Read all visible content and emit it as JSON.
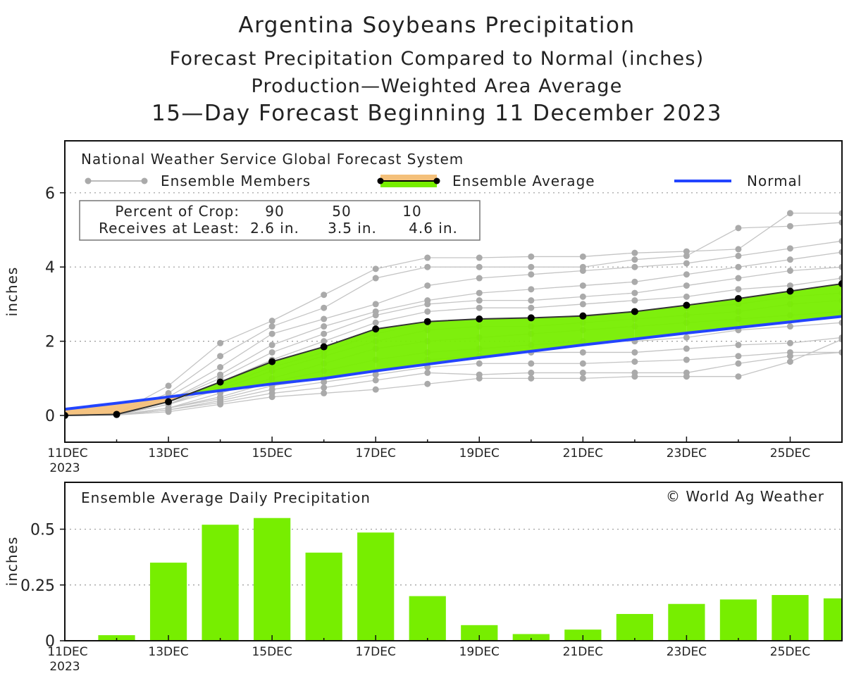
{
  "titles": [
    "Argentina Soybeans Precipitation",
    "Forecast Precipitation Compared to Normal (inches)",
    "Production—Weighted Area Average",
    "15—Day Forecast Beginning 11 December 2023"
  ],
  "colors": {
    "ensemble_member": "#aaaaaa",
    "above_normal_fill": "#77ee00",
    "below_normal_fill": "#f4c07a",
    "normal_line": "#2244ff",
    "bar": "#77ee00",
    "average_line": "#000000"
  },
  "chart_data": [
    {
      "type": "line",
      "subtitle": "National Weather Service Global Forecast System",
      "ylabel": "inches",
      "ylim": [
        -0.72,
        7.4
      ],
      "yticks": [
        0,
        2,
        4,
        6
      ],
      "grid": "horizontal dotted",
      "x": [
        "11DEC",
        "12DEC",
        "13DEC",
        "14DEC",
        "15DEC",
        "16DEC",
        "17DEC",
        "18DEC",
        "19DEC",
        "20DEC",
        "21DEC",
        "22DEC",
        "23DEC",
        "24DEC",
        "25DEC",
        "26DEC"
      ],
      "xtick_labels": [
        "11DEC",
        "13DEC",
        "15DEC",
        "17DEC",
        "19DEC",
        "21DEC",
        "23DEC",
        "25DEC"
      ],
      "xtick_year": "2023",
      "legend": {
        "members": "Ensemble Members",
        "average": "Ensemble Average",
        "normal": "Normal",
        "placement": "top"
      },
      "crop_table": {
        "row1_label": "Percent of Crop:",
        "row1": [
          "90",
          "50",
          "10"
        ],
        "row2_label": "Receives at Least:",
        "row2": [
          "2.6 in.",
          "3.5 in.",
          "4.6 in."
        ]
      },
      "ensemble_average": [
        0,
        0.03,
        0.37,
        0.9,
        1.45,
        1.85,
        2.33,
        2.53,
        2.6,
        2.63,
        2.68,
        2.8,
        2.97,
        3.15,
        3.35,
        3.55
      ],
      "normal": [
        0.17,
        0.33,
        0.5,
        0.67,
        0.85,
        1.0,
        1.2,
        1.38,
        1.56,
        1.73,
        1.9,
        2.06,
        2.22,
        2.37,
        2.52,
        2.67
      ],
      "ensemble_members": [
        [
          0,
          0.05,
          0.8,
          1.95,
          2.55,
          3.25,
          3.95,
          4.25,
          4.25,
          4.28,
          4.28,
          4.38,
          4.42,
          4.48,
          5.45,
          5.45
        ],
        [
          0,
          0.05,
          0.6,
          1.6,
          2.4,
          2.9,
          3.7,
          4.0,
          4.0,
          4.0,
          4.0,
          4.2,
          4.3,
          5.05,
          5.1,
          5.2
        ],
        [
          0,
          0.02,
          0.5,
          1.3,
          2.2,
          2.6,
          3.0,
          3.5,
          3.7,
          3.8,
          3.9,
          4.0,
          4.1,
          4.3,
          4.5,
          4.7
        ],
        [
          0,
          0.03,
          0.4,
          1.1,
          1.9,
          2.4,
          2.8,
          3.1,
          3.3,
          3.4,
          3.5,
          3.6,
          3.8,
          4.0,
          4.2,
          4.4
        ],
        [
          0,
          0.03,
          0.4,
          1.0,
          1.7,
          2.2,
          2.7,
          3.0,
          3.1,
          3.1,
          3.2,
          3.3,
          3.5,
          3.7,
          3.9,
          4.0
        ],
        [
          0,
          0.02,
          0.3,
          0.9,
          1.5,
          2.0,
          2.5,
          2.8,
          2.9,
          2.9,
          3.0,
          3.1,
          3.2,
          3.4,
          3.5,
          3.7
        ],
        [
          0,
          0.02,
          0.3,
          0.8,
          1.3,
          1.7,
          2.2,
          2.5,
          2.6,
          2.6,
          2.7,
          2.8,
          2.9,
          3.0,
          3.2,
          3.3
        ],
        [
          0,
          0.01,
          0.3,
          0.7,
          1.2,
          1.6,
          2.0,
          2.3,
          2.4,
          2.4,
          2.5,
          2.6,
          2.7,
          2.8,
          3.0,
          3.1
        ],
        [
          0,
          0.01,
          0.2,
          0.6,
          1.0,
          1.4,
          1.8,
          2.0,
          2.1,
          2.2,
          2.3,
          2.4,
          2.5,
          2.6,
          2.7,
          2.8
        ],
        [
          0,
          0.01,
          0.2,
          0.5,
          0.9,
          1.2,
          1.5,
          1.7,
          1.8,
          1.9,
          2.0,
          2.0,
          2.1,
          2.3,
          2.4,
          2.5
        ],
        [
          0,
          0.01,
          0.2,
          0.45,
          0.8,
          1.0,
          1.2,
          1.5,
          1.6,
          1.7,
          1.7,
          1.7,
          1.8,
          1.9,
          1.95,
          2.1
        ],
        [
          0,
          0.01,
          0.15,
          0.4,
          0.7,
          0.9,
          1.1,
          1.3,
          1.4,
          1.4,
          1.4,
          1.45,
          1.5,
          1.6,
          1.7,
          1.7
        ],
        [
          0,
          0.01,
          0.15,
          0.35,
          0.6,
          0.75,
          0.95,
          1.15,
          1.1,
          1.15,
          1.15,
          1.15,
          1.15,
          1.4,
          1.6,
          1.7
        ],
        [
          0,
          0.01,
          0.1,
          0.3,
          0.5,
          0.6,
          0.7,
          0.85,
          1.0,
          1.0,
          1.0,
          1.05,
          1.05,
          1.05,
          1.45,
          2.05
        ]
      ]
    },
    {
      "type": "bar",
      "subtitle": "Ensemble Average Daily Precipitation",
      "credit": "© World Ag Weather",
      "ylabel": "inches",
      "ylim": [
        0,
        0.71
      ],
      "yticks": [
        "0",
        "0.25",
        "0.5"
      ],
      "ytick_values": [
        0,
        0.25,
        0.5
      ],
      "grid": "horizontal dotted",
      "categories": [
        "12DEC",
        "13DEC",
        "14DEC",
        "15DEC",
        "16DEC",
        "17DEC",
        "18DEC",
        "19DEC",
        "20DEC",
        "21DEC",
        "22DEC",
        "23DEC",
        "24DEC",
        "25DEC",
        "26DEC"
      ],
      "values": [
        0.025,
        0.35,
        0.52,
        0.55,
        0.395,
        0.485,
        0.2,
        0.07,
        0.03,
        0.05,
        0.12,
        0.165,
        0.185,
        0.205,
        0.19
      ]
    }
  ]
}
